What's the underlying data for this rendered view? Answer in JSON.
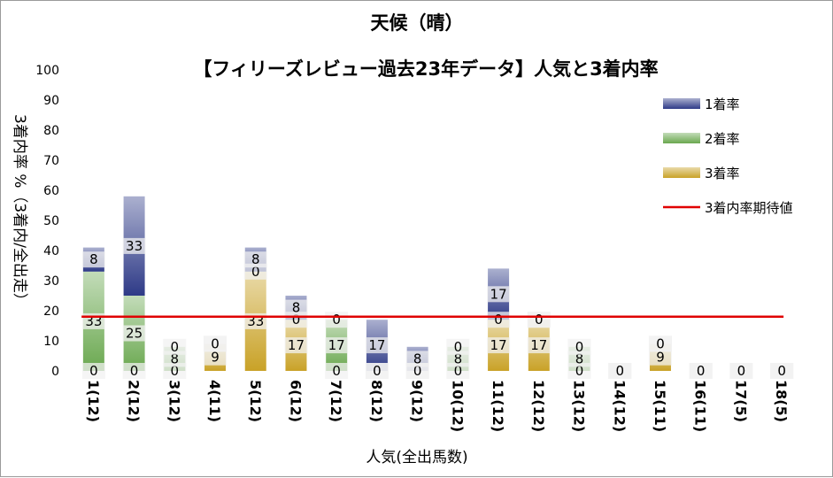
{
  "chart_data": {
    "type": "bar",
    "stacked": true,
    "title": "天候（晴）",
    "subtitle": "【フィリーズレビュー過去23年データ】人気と3着内率",
    "xlabel": "人気(全出馬数)",
    "ylabel": "3着内率 %（3着内/全出走）",
    "ylim": [
      0,
      100
    ],
    "yticks": [
      0,
      10,
      20,
      30,
      40,
      50,
      60,
      70,
      80,
      90,
      100
    ],
    "categories": [
      "1(12)",
      "2(12)",
      "3(12)",
      "4(11)",
      "5(12)",
      "6(12)",
      "7(12)",
      "8(12)",
      "9(12)",
      "10(12)",
      "11(12)",
      "12(12)",
      "13(12)",
      "14(12)",
      "15(11)",
      "16(11)",
      "17(5)",
      "18(5)"
    ],
    "series": [
      {
        "name": "3着率",
        "color": "#c9a227",
        "values": [
          0,
          0,
          0,
          9,
          33,
          17,
          0,
          0,
          0,
          0,
          17,
          17,
          0,
          0,
          9,
          0,
          0,
          0
        ]
      },
      {
        "name": "2着率",
        "color": "#6aa84f",
        "values": [
          33,
          25,
          8,
          0,
          0,
          0,
          17,
          0,
          0,
          8,
          0,
          0,
          8,
          0,
          0,
          0,
          0,
          0
        ]
      },
      {
        "name": "1着率",
        "color": "#2e3a87",
        "values": [
          8,
          33,
          0,
          0,
          8,
          8,
          0,
          17,
          8,
          0,
          17,
          0,
          0,
          0,
          0,
          0,
          0,
          0
        ]
      }
    ],
    "reference_line": {
      "name": "3着内率期待値",
      "value": 18,
      "color": "#e00000"
    },
    "legend_items": [
      {
        "name": "1着率",
        "color": "#2e3a87"
      },
      {
        "name": "2着率",
        "color": "#6aa84f"
      },
      {
        "name": "3着率",
        "color": "#c9a227"
      },
      {
        "name": "3着内率期待値",
        "color": "#e00000",
        "line": true
      }
    ],
    "legend_position": "right",
    "grid": false
  }
}
